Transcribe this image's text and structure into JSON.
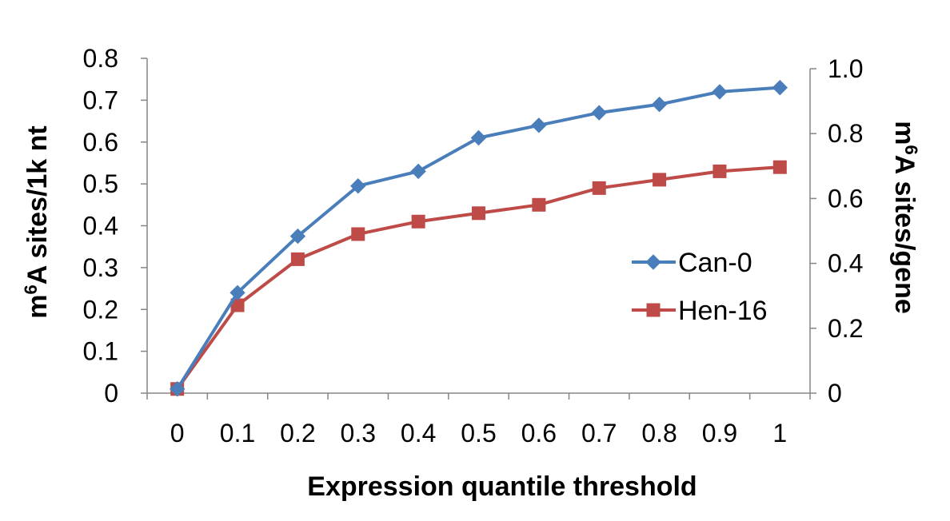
{
  "chart_data": {
    "type": "line",
    "xlabel": "Expression quantile threshold",
    "ylabel": {
      "base": "m",
      "sup": "6",
      "rest": "A sites/1k nt"
    },
    "y2label": {
      "base": "m",
      "sup": "6",
      "rest": "A sites/gene"
    },
    "x": [
      0,
      0.1,
      0.2,
      0.3,
      0.4,
      0.5,
      0.6,
      0.7,
      0.8,
      0.9,
      1
    ],
    "x_tick_labels": [
      "0",
      "0.1",
      "0.2",
      "0.3",
      "0.4",
      "0.5",
      "0.6",
      "0.7",
      "0.8",
      "0.9",
      "1"
    ],
    "ylim": [
      0,
      0.8
    ],
    "y_ticks": [
      "0",
      "0.1",
      "0.2",
      "0.3",
      "0.4",
      "0.5",
      "0.6",
      "0.7",
      "0.8"
    ],
    "y2lim": [
      0,
      1.0
    ],
    "y2_ticks": [
      "0",
      "0.2",
      "0.4",
      "0.6",
      "0.8",
      "1.0"
    ],
    "legend_position": "right",
    "grid": false,
    "series": [
      {
        "name": "Can-0",
        "color": "#4a7ebb",
        "marker": "diamond",
        "values": [
          0.01,
          0.24,
          0.375,
          0.495,
          0.53,
          0.61,
          0.64,
          0.67,
          0.69,
          0.72,
          0.73
        ]
      },
      {
        "name": "Hen-16",
        "color": "#be4b48",
        "marker": "square",
        "values": [
          0.01,
          0.21,
          0.32,
          0.38,
          0.41,
          0.43,
          0.45,
          0.49,
          0.51,
          0.53,
          0.54
        ]
      }
    ]
  }
}
